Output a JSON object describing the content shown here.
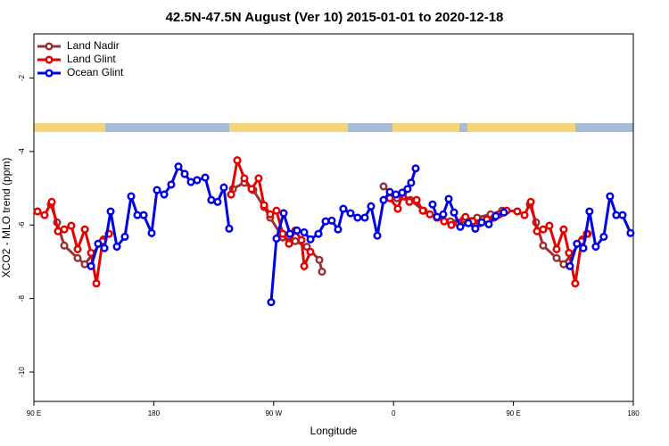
{
  "chart_data": {
    "type": "line",
    "title": "42.5N-47.5N August (Ver 10)   2015-01-01 to 2020-12-18",
    "xlabel": "Longitude",
    "ylabel": "XCO2 - MLO trend (ppm)",
    "xlim": [
      90,
      540
    ],
    "xticks": [
      {
        "value": 90,
        "label": "90 E"
      },
      {
        "value": 180,
        "label": "180"
      },
      {
        "value": 270,
        "label": "90 W"
      },
      {
        "value": 360,
        "label": "0"
      },
      {
        "value": 450,
        "label": "90 E"
      },
      {
        "value": 540,
        "label": "180"
      }
    ],
    "ylim": [
      -10.8,
      -0.8
    ],
    "yticks": [
      -2,
      -4,
      -6,
      -8,
      -10
    ],
    "legend": "top-left",
    "series": [
      {
        "name": "Land Nadir",
        "color": "#993333",
        "x": [
          102.7,
          107.4,
          112.8,
          122.8,
          128.2,
          142.3,
          146.3,
          null,
          239.4,
          248,
          254.7,
          262.8,
          267.4,
          276.8,
          286.2,
          294.9,
          304.3,
          306.3,
          null,
          352.5,
          362.5,
          372.6,
          382.6,
          392.6,
          402.7,
          412.7,
          422.8,
          432.8,
          441.5,
          null,
          462.3,
          467,
          472.3,
          482.4,
          487.7,
          501.8,
          505.8
        ],
        "values": [
          -5.44,
          -5.93,
          -6.56,
          -6.9,
          -7.07,
          -6.39,
          -6.24,
          null,
          -5.02,
          -4.85,
          -5.05,
          -5.51,
          -5.8,
          -6.34,
          -6.44,
          -6.59,
          -6.95,
          -7.27,
          null,
          -4.95,
          -5.27,
          -5.32,
          -5.61,
          -5.8,
          -5.9,
          -5.85,
          -5.8,
          -5.71,
          -5.61,
          null,
          -5.44,
          -5.93,
          -6.56,
          -6.9,
          -7.07,
          -6.39,
          -6.24
        ]
      },
      {
        "name": "Land Glint",
        "color": "#e60000",
        "x": [
          92.7,
          98,
          103.4,
          108.1,
          112.8,
          118.1,
          122.8,
          128.2,
          132.9,
          136.9,
          141.6,
          146.3,
          null,
          238,
          242.7,
          248,
          253.4,
          258.7,
          262.8,
          267.4,
          272.1,
          276.8,
          281.5,
          286.2,
          290.9,
          292.9,
          297.6,
          null,
          357.2,
          363.2,
          367.2,
          371.9,
          377.3,
          381.9,
          387.3,
          392.6,
          398,
          403.4,
          408.7,
          414,
          419.4,
          424.8,
          430.1,
          435.5,
          439.5,
          444.9,
          452.9,
          458.3,
          463,
          467.7,
          472.3,
          477,
          482.4,
          487.7,
          491.7,
          496.4,
          501.1,
          505.1
        ],
        "values": [
          -5.63,
          -5.73,
          -5.37,
          -6.17,
          -6.12,
          -6.02,
          -6.66,
          -6.12,
          -6.76,
          -7.59,
          -6.44,
          -6.24,
          null,
          -5.17,
          -4.24,
          -4.73,
          -5.02,
          -4.73,
          -5.46,
          -5.71,
          -5.61,
          -6.24,
          -6.51,
          -6.15,
          -6.41,
          -7.12,
          -6.73,
          null,
          -5.27,
          -5.56,
          -5.12,
          -5.37,
          -5.32,
          -5.61,
          -5.71,
          -5.8,
          -5.9,
          -6,
          -5.95,
          -5.78,
          -5.9,
          -5.95,
          -5.85,
          -5.8,
          -5.71,
          -5.61,
          -5.63,
          -5.73,
          -5.37,
          -6.17,
          -6.12,
          -6.02,
          -6.66,
          -6.12,
          -6.76,
          -7.59,
          -6.44,
          -6.24
        ]
      },
      {
        "name": "Ocean Glint",
        "color": "#0000e6",
        "x": [
          132.9,
          138.2,
          142.9,
          147.6,
          152.3,
          158.3,
          163,
          167.7,
          172.4,
          178.4,
          182.4,
          187.8,
          193.1,
          198.5,
          203.2,
          207.9,
          212.5,
          218.6,
          223.2,
          227.9,
          232.6,
          236.6,
          null,
          268.1,
          272.1,
          277.5,
          282.2,
          287.5,
          292.9,
          297.6,
          303.6,
          309,
          313.6,
          318.3,
          322.3,
          327.7,
          333,
          338.4,
          343.1,
          347.8,
          352.5,
          357.2,
          361.8,
          366.5,
          370.5,
          373.2,
          376.6,
          null,
          389.3,
          392.6,
          397.3,
          401.4,
          405.4,
          410.1,
          416.1,
          421.4,
          426.1,
          431.5,
          436.8,
          442.8,
          null,
          492.4,
          497.7,
          502.5,
          507.1,
          511.8,
          517.8,
          522.5,
          527.2,
          531.9,
          537.9
        ],
        "values": [
          -7.12,
          -6.51,
          -6.63,
          -5.63,
          -6.59,
          -6.32,
          -5.22,
          -5.73,
          -5.73,
          -6.22,
          -5.05,
          -5.17,
          -4.9,
          -4.41,
          -4.61,
          -4.83,
          -4.78,
          -4.71,
          -5.32,
          -5.37,
          -4.98,
          -6.1,
          null,
          -8.1,
          -6.37,
          -5.68,
          -6.24,
          -6.15,
          -6.2,
          -6.39,
          -6.24,
          -5.9,
          -5.88,
          -6.12,
          -5.56,
          -5.68,
          -5.8,
          -5.8,
          -5.49,
          -6.29,
          -5.32,
          -5.1,
          -5.17,
          -5.12,
          -5.02,
          -4.85,
          -4.46,
          null,
          -5.44,
          -5.78,
          -5.71,
          -5.29,
          -5.66,
          -6.05,
          -5.95,
          -6.1,
          -5.93,
          -5.98,
          -5.76,
          -5.66,
          null,
          -7.12,
          -6.51,
          -6.63,
          -5.63,
          -6.59,
          -6.32,
          -5.22,
          -5.73,
          -5.73,
          -6.22
        ]
      }
    ]
  }
}
